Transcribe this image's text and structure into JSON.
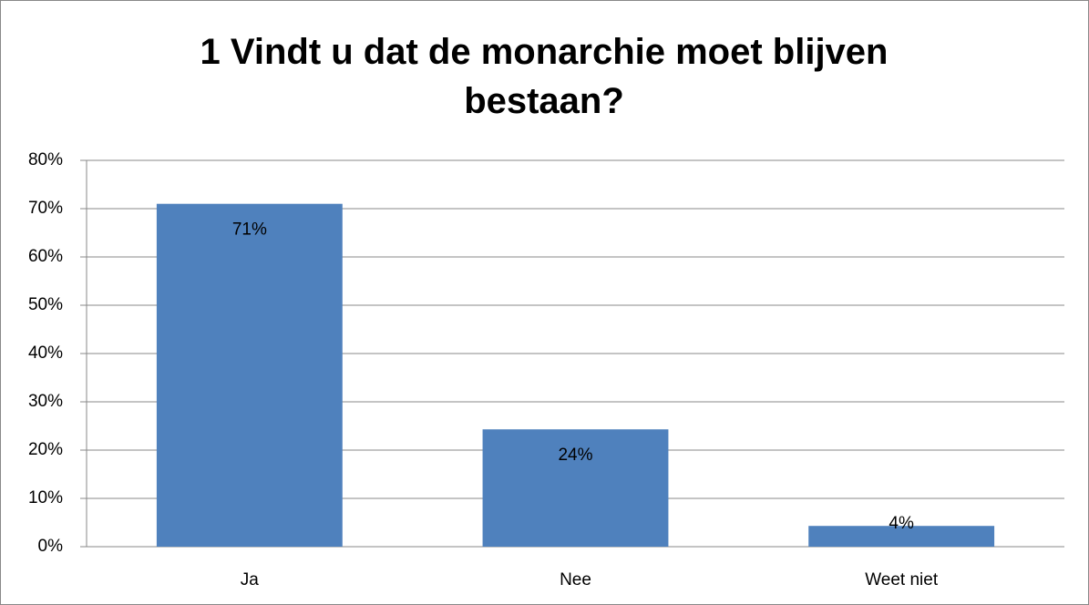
{
  "chart_data": {
    "type": "bar",
    "title": "1 Vindt u dat de monarchie moet blijven bestaan?",
    "categories": [
      "Ja",
      "Nee",
      "Weet niet"
    ],
    "values": [
      71,
      24.3,
      4.3
    ],
    "value_labels": [
      "71%",
      "24%",
      "4%"
    ],
    "color": "#4f81bd",
    "ylim": [
      0,
      80
    ],
    "yticks": [
      {
        "value": 0,
        "label": "0%"
      },
      {
        "value": 10,
        "label": "10%"
      },
      {
        "value": 20,
        "label": "20%"
      },
      {
        "value": 30,
        "label": "30%"
      },
      {
        "value": 40,
        "label": "40%"
      },
      {
        "value": 50,
        "label": "50%"
      },
      {
        "value": 60,
        "label": "60%"
      },
      {
        "value": 70,
        "label": "70%"
      },
      {
        "value": 80,
        "label": "80%"
      }
    ],
    "grid": true
  }
}
